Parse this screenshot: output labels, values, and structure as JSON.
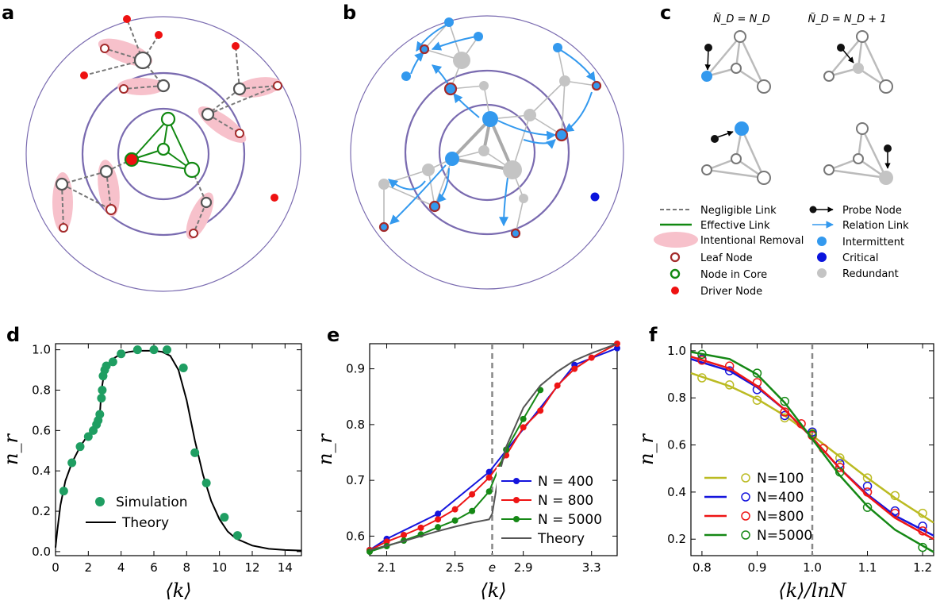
{
  "panels": {
    "a": {
      "label": "a"
    },
    "b": {
      "label": "b"
    },
    "c": {
      "label": "c"
    },
    "d": {
      "label": "d"
    },
    "e": {
      "label": "e"
    },
    "f": {
      "label": "f"
    }
  },
  "panel_c": {
    "col1_title": "Ñ_D = N_D",
    "col2_title": "Ñ_D = N_D + 1"
  },
  "legend_abc": {
    "left": [
      "Negligible Link",
      "Effective Link",
      "Intentional Removal",
      "Leaf Node",
      "Node in Core",
      "Driver Node"
    ],
    "right": [
      "Probe Node",
      "Relation Link",
      "Intermittent",
      "Critical",
      "Redundant"
    ]
  },
  "colors": {
    "red": "#ee1111",
    "green": "#118811",
    "purple": "#7a6bb0",
    "pink": "#f7c1cb",
    "light_blue": "#3399ee",
    "dark_blue": "#0a14dd",
    "gray_node": "#c4c4c4",
    "sim_green": "#1f9e62",
    "theory_gray": "#555555",
    "n100": "#bbbb22",
    "n400": "#1515dd",
    "n800": "#ee1515",
    "n5000": "#158815"
  },
  "chart_data": [
    {
      "panel": "d",
      "type": "scatter",
      "xlabel": "⟨k⟩",
      "ylabel": "n_r",
      "xlim": [
        0,
        15
      ],
      "ylim": [
        -0.02,
        1.03
      ],
      "xticks": [
        "0",
        "2",
        "4",
        "6",
        "8",
        "10",
        "12",
        "14"
      ],
      "yticks": [
        "0.0",
        "0.2",
        "0.4",
        "0.6",
        "0.8",
        "1.0"
      ],
      "series": [
        {
          "name": "Simulation",
          "style": "markers",
          "x": [
            0.5,
            1.0,
            1.5,
            2.0,
            2.3,
            2.5,
            2.6,
            2.7,
            2.8,
            2.85,
            2.9,
            3.0,
            3.1,
            3.5,
            4.0,
            5.0,
            6.0,
            6.8,
            7.8,
            8.5,
            9.2,
            10.3,
            11.1
          ],
          "y": [
            0.3,
            0.44,
            0.52,
            0.57,
            0.6,
            0.63,
            0.65,
            0.68,
            0.76,
            0.8,
            0.87,
            0.9,
            0.92,
            0.94,
            0.98,
            1.0,
            1.0,
            1.0,
            0.91,
            0.49,
            0.34,
            0.17,
            0.08
          ]
        },
        {
          "name": "Theory",
          "style": "line",
          "x": [
            0,
            0.1,
            0.3,
            0.6,
            1.0,
            1.5,
            2.0,
            2.5,
            2.7,
            2.72,
            2.8,
            3.0,
            3.5,
            4.0,
            4.5,
            5.0,
            6.0,
            6.5,
            7.0,
            7.5,
            8.0,
            8.5,
            9.0,
            9.5,
            10.0,
            10.5,
            11.0,
            12.0,
            13.0,
            14.0,
            15.0
          ],
          "y": [
            0.02,
            0.1,
            0.23,
            0.35,
            0.44,
            0.52,
            0.58,
            0.63,
            0.65,
            0.7,
            0.8,
            0.9,
            0.955,
            0.98,
            0.99,
            0.995,
            0.995,
            0.99,
            0.97,
            0.9,
            0.75,
            0.55,
            0.38,
            0.25,
            0.16,
            0.1,
            0.065,
            0.03,
            0.014,
            0.008,
            0.005
          ]
        }
      ]
    },
    {
      "panel": "e",
      "type": "line",
      "xlabel": "⟨k⟩",
      "ylabel": "n_r",
      "xlim": [
        2.0,
        3.45
      ],
      "ylim": [
        0.565,
        0.945
      ],
      "xticks": [
        "2.1",
        "2.5",
        "e",
        "2.9",
        "3.3"
      ],
      "yticks": [
        "0.6",
        "0.7",
        "0.8",
        "0.9"
      ],
      "vline_x": 2.718,
      "series": [
        {
          "name": "N = 400",
          "style": "line+markers",
          "x": [
            2.0,
            2.1,
            2.4,
            2.7,
            3.2,
            3.45
          ],
          "y": [
            0.575,
            0.595,
            0.64,
            0.715,
            0.907,
            0.937
          ]
        },
        {
          "name": "N = 800",
          "style": "line+markers",
          "x": [
            2.0,
            2.1,
            2.2,
            2.3,
            2.4,
            2.5,
            2.6,
            2.7,
            2.8,
            2.9,
            3.0,
            3.1,
            3.2,
            3.3,
            3.45
          ],
          "y": [
            0.575,
            0.59,
            0.602,
            0.615,
            0.63,
            0.648,
            0.675,
            0.705,
            0.745,
            0.795,
            0.825,
            0.87,
            0.9,
            0.92,
            0.945
          ]
        },
        {
          "name": "N = 5000",
          "style": "line+markers",
          "x": [
            2.0,
            2.1,
            2.2,
            2.3,
            2.4,
            2.5,
            2.6,
            2.7,
            2.8,
            2.9,
            3.0
          ],
          "y": [
            0.572,
            0.582,
            0.592,
            0.603,
            0.616,
            0.628,
            0.645,
            0.68,
            0.755,
            0.81,
            0.862
          ]
        },
        {
          "name": "Theory",
          "style": "line",
          "x": [
            2.0,
            2.1,
            2.2,
            2.3,
            2.4,
            2.5,
            2.6,
            2.7,
            2.718,
            2.75,
            2.8,
            2.9,
            3.0,
            3.1,
            3.2,
            3.3,
            3.45
          ],
          "y": [
            0.575,
            0.583,
            0.591,
            0.6,
            0.609,
            0.617,
            0.624,
            0.63,
            0.64,
            0.7,
            0.76,
            0.83,
            0.87,
            0.895,
            0.915,
            0.928,
            0.945
          ]
        }
      ]
    },
    {
      "panel": "f",
      "type": "scatter",
      "xlabel": "⟨k⟩/lnN",
      "ylabel": "n_r",
      "xlim": [
        0.78,
        1.22
      ],
      "ylim": [
        0.13,
        1.03
      ],
      "xticks": [
        "0.8",
        "0.9",
        "1.0",
        "1.1",
        "1.2"
      ],
      "yticks": [
        "0.2",
        "0.4",
        "0.6",
        "0.8",
        "1.0"
      ],
      "vline_x": 1.0,
      "series": [
        {
          "name": "N=100",
          "x": [
            0.8,
            0.85,
            0.9,
            0.95,
            1.0,
            1.05,
            1.1,
            1.15,
            1.2
          ],
          "y": [
            0.885,
            0.855,
            0.79,
            0.715,
            0.65,
            0.545,
            0.46,
            0.385,
            0.31
          ],
          "fit_x": [
            0.78,
            0.85,
            0.9,
            0.95,
            1.0,
            1.05,
            1.1,
            1.15,
            1.22
          ],
          "fit_y": [
            0.905,
            0.85,
            0.795,
            0.725,
            0.64,
            0.55,
            0.46,
            0.375,
            0.27
          ]
        },
        {
          "name": "N=400",
          "x": [
            0.8,
            0.85,
            0.9,
            0.95,
            1.0,
            1.05,
            1.1,
            1.15,
            1.2
          ],
          "y": [
            0.965,
            0.915,
            0.835,
            0.725,
            0.655,
            0.52,
            0.425,
            0.32,
            0.255
          ],
          "fit_x": [
            0.78,
            0.85,
            0.9,
            0.95,
            1.0,
            1.05,
            1.1,
            1.15,
            1.22
          ],
          "fit_y": [
            0.965,
            0.915,
            0.845,
            0.75,
            0.63,
            0.5,
            0.39,
            0.3,
            0.215
          ]
        },
        {
          "name": "N=800",
          "x": [
            0.8,
            0.85,
            0.9,
            0.95,
            0.98,
            1.0,
            1.02,
            1.05,
            1.1,
            1.15,
            1.2
          ],
          "y": [
            0.96,
            0.935,
            0.865,
            0.74,
            0.69,
            0.64,
            0.585,
            0.505,
            0.4,
            0.31,
            0.235
          ],
          "fit_x": [
            0.78,
            0.85,
            0.9,
            0.95,
            1.0,
            1.05,
            1.1,
            1.15,
            1.22
          ],
          "fit_y": [
            0.975,
            0.925,
            0.85,
            0.75,
            0.63,
            0.5,
            0.385,
            0.29,
            0.2
          ]
        },
        {
          "name": "N=5000",
          "x": [
            0.8,
            0.9,
            0.95,
            1.0,
            1.05,
            1.1,
            1.2
          ],
          "y": [
            0.985,
            0.905,
            0.785,
            0.645,
            0.485,
            0.335,
            0.165
          ],
          "fit_x": [
            0.78,
            0.85,
            0.9,
            0.95,
            1.0,
            1.05,
            1.1,
            1.15,
            1.22
          ],
          "fit_y": [
            0.995,
            0.965,
            0.9,
            0.78,
            0.625,
            0.47,
            0.34,
            0.24,
            0.145
          ]
        }
      ]
    }
  ]
}
